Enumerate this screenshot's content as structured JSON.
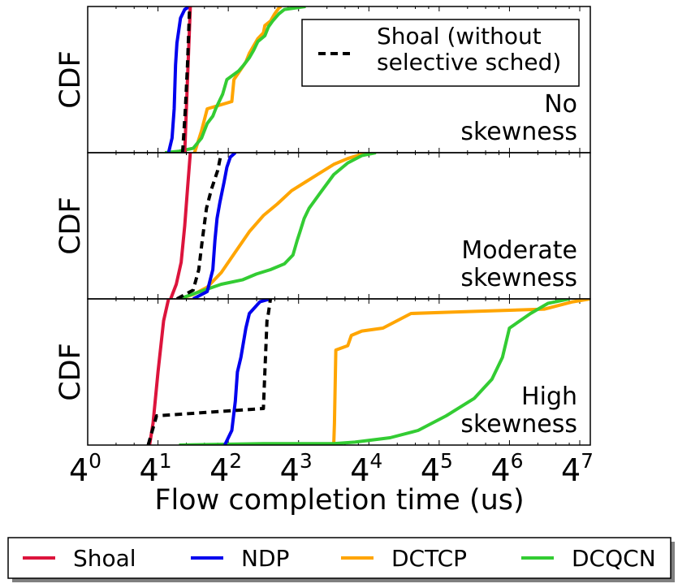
{
  "chart_data": {
    "type": "line",
    "xlabel": "Flow completion time (us)",
    "x_scale": "log4",
    "xlim": [
      0,
      7.15
    ],
    "ylim": [
      0,
      1
    ],
    "x_tick_bases": [
      "4",
      "4",
      "4",
      "4",
      "4",
      "4",
      "4",
      "4"
    ],
    "x_tick_exponents": [
      "0",
      "1",
      "2",
      "3",
      "4",
      "5",
      "6",
      "7"
    ],
    "x_tick_values": [
      0,
      1,
      2,
      3,
      4,
      5,
      6,
      7
    ],
    "colors": {
      "Shoal": "#dc143c",
      "NDP": "#0000ee",
      "DCTCP": "#ffa500",
      "DCQCN": "#33cc33",
      "Shoal (without selective sched)": "#000000"
    },
    "legend": {
      "placement": "bottom, outside",
      "entries": [
        "Shoal",
        "NDP",
        "DCTCP",
        "DCQCN"
      ]
    },
    "panels": [
      {
        "ylabel": "CDF",
        "label_lines": [
          "No",
          "skewness"
        ],
        "inset_legend": {
          "placement": "top-right",
          "label_lines": [
            "Shoal (without",
            "selective sched)"
          ]
        },
        "series": [
          {
            "name": "DCTCP",
            "points": [
              [
                1.52,
                0
              ],
              [
                1.62,
                0.15
              ],
              [
                1.7,
                0.3
              ],
              [
                2.05,
                0.35
              ],
              [
                2.08,
                0.5
              ],
              [
                2.25,
                0.62
              ],
              [
                2.3,
                0.68
              ],
              [
                2.42,
                0.78
              ],
              [
                2.5,
                0.82
              ],
              [
                2.52,
                0.87
              ],
              [
                2.6,
                0.9
              ],
              [
                2.66,
                0.95
              ],
              [
                2.72,
                0.99
              ],
              [
                2.75,
                1
              ]
            ]
          },
          {
            "name": "DCQCN",
            "points": [
              [
                1.1,
                0
              ],
              [
                1.3,
                0.01
              ],
              [
                1.5,
                0.03
              ],
              [
                1.62,
                0.1
              ],
              [
                1.7,
                0.2
              ],
              [
                1.78,
                0.25
              ],
              [
                1.82,
                0.3
              ],
              [
                1.92,
                0.4
              ],
              [
                1.98,
                0.5
              ],
              [
                2.15,
                0.56
              ],
              [
                2.22,
                0.6
              ],
              [
                2.3,
                0.65
              ],
              [
                2.36,
                0.7
              ],
              [
                2.42,
                0.76
              ],
              [
                2.52,
                0.8
              ],
              [
                2.57,
                0.86
              ],
              [
                2.63,
                0.9
              ],
              [
                2.72,
                0.95
              ],
              [
                2.8,
                0.98
              ],
              [
                3.1,
                1
              ]
            ]
          },
          {
            "name": "NDP",
            "points": [
              [
                1.15,
                0
              ],
              [
                1.2,
                0.1
              ],
              [
                1.23,
                0.3
              ],
              [
                1.25,
                0.6
              ],
              [
                1.27,
                0.75
              ],
              [
                1.3,
                0.85
              ],
              [
                1.32,
                0.92
              ],
              [
                1.38,
                0.98
              ],
              [
                1.45,
                1
              ]
            ]
          },
          {
            "name": "Shoal",
            "points": [
              [
                1.38,
                0
              ],
              [
                1.42,
                0.5
              ],
              [
                1.46,
                1
              ]
            ]
          },
          {
            "name": "Shoal (without selective sched)",
            "points": [
              [
                1.35,
                0
              ],
              [
                1.39,
                0.3
              ],
              [
                1.42,
                0.6
              ],
              [
                1.45,
                1
              ]
            ]
          }
        ]
      },
      {
        "ylabel": "CDF",
        "label_lines": [
          "Moderate",
          "skewness"
        ],
        "series": [
          {
            "name": "DCTCP",
            "points": [
              [
                1.3,
                0
              ],
              [
                1.5,
                0.03
              ],
              [
                1.7,
                0.08
              ],
              [
                1.9,
                0.18
              ],
              [
                2.1,
                0.32
              ],
              [
                2.3,
                0.46
              ],
              [
                2.5,
                0.57
              ],
              [
                2.7,
                0.65
              ],
              [
                2.9,
                0.74
              ],
              [
                3.1,
                0.8
              ],
              [
                3.3,
                0.86
              ],
              [
                3.5,
                0.92
              ],
              [
                3.7,
                0.96
              ],
              [
                3.9,
                0.99
              ],
              [
                4.0,
                1
              ]
            ]
          },
          {
            "name": "DCQCN",
            "points": [
              [
                1.3,
                0
              ],
              [
                1.6,
                0.05
              ],
              [
                1.9,
                0.1
              ],
              [
                2.2,
                0.13
              ],
              [
                2.4,
                0.17
              ],
              [
                2.6,
                0.2
              ],
              [
                2.8,
                0.24
              ],
              [
                2.92,
                0.3
              ],
              [
                2.98,
                0.4
              ],
              [
                3.02,
                0.46
              ],
              [
                3.08,
                0.55
              ],
              [
                3.15,
                0.62
              ],
              [
                3.3,
                0.72
              ],
              [
                3.5,
                0.85
              ],
              [
                3.7,
                0.93
              ],
              [
                3.9,
                0.98
              ],
              [
                4.1,
                1
              ]
            ]
          },
          {
            "name": "NDP",
            "points": [
              [
                1.5,
                0
              ],
              [
                1.7,
                0.05
              ],
              [
                1.78,
                0.2
              ],
              [
                1.81,
                0.4
              ],
              [
                1.84,
                0.55
              ],
              [
                1.88,
                0.66
              ],
              [
                1.94,
                0.8
              ],
              [
                1.98,
                0.9
              ],
              [
                2.03,
                0.97
              ],
              [
                2.1,
                1
              ]
            ]
          },
          {
            "name": "Shoal",
            "points": [
              [
                1.18,
                0
              ],
              [
                1.26,
                0.1
              ],
              [
                1.33,
                0.25
              ],
              [
                1.38,
                0.5
              ],
              [
                1.42,
                0.75
              ],
              [
                1.46,
                1
              ]
            ]
          },
          {
            "name": "Shoal (without selective sched)",
            "points": [
              [
                1.27,
                0
              ],
              [
                1.5,
                0.06
              ],
              [
                1.58,
                0.2
              ],
              [
                1.63,
                0.4
              ],
              [
                1.69,
                0.62
              ],
              [
                1.76,
                0.75
              ],
              [
                1.85,
                0.88
              ],
              [
                1.9,
                1
              ]
            ]
          }
        ]
      },
      {
        "ylabel": "CDF",
        "label_lines": [
          "High",
          "skewness"
        ],
        "series": [
          {
            "name": "DCTCP",
            "points": [
              [
                3.5,
                0
              ],
              [
                3.51,
                0.15
              ],
              [
                3.53,
                0.65
              ],
              [
                3.7,
                0.68
              ],
              [
                3.75,
                0.75
              ],
              [
                3.9,
                0.78
              ],
              [
                4.2,
                0.8
              ],
              [
                4.6,
                0.9
              ],
              [
                5.2,
                0.91
              ],
              [
                6.5,
                0.93
              ],
              [
                6.9,
                0.98
              ],
              [
                7.15,
                1
              ]
            ]
          },
          {
            "name": "DCQCN",
            "points": [
              [
                1.3,
                0
              ],
              [
                2.5,
                0.01
              ],
              [
                3.5,
                0.01
              ],
              [
                3.8,
                0.02
              ],
              [
                4.3,
                0.05
              ],
              [
                4.7,
                0.1
              ],
              [
                5.1,
                0.2
              ],
              [
                5.5,
                0.32
              ],
              [
                5.75,
                0.45
              ],
              [
                5.9,
                0.6
              ],
              [
                6.0,
                0.8
              ],
              [
                6.3,
                0.9
              ],
              [
                6.55,
                0.97
              ],
              [
                6.85,
                1
              ]
            ]
          },
          {
            "name": "NDP",
            "points": [
              [
                1.95,
                0
              ],
              [
                2.05,
                0.1
              ],
              [
                2.1,
                0.3
              ],
              [
                2.13,
                0.5
              ],
              [
                2.18,
                0.6
              ],
              [
                2.25,
                0.8
              ],
              [
                2.3,
                0.9
              ],
              [
                2.45,
                0.98
              ],
              [
                2.6,
                1
              ]
            ]
          },
          {
            "name": "Shoal",
            "points": [
              [
                0.88,
                0
              ],
              [
                0.93,
                0.15
              ],
              [
                1.0,
                0.5
              ],
              [
                1.08,
                0.85
              ],
              [
                1.15,
                1
              ]
            ]
          },
          {
            "name": "Shoal (without selective sched)",
            "points": [
              [
                0.86,
                0
              ],
              [
                0.98,
                0.2
              ],
              [
                2.5,
                0.25
              ],
              [
                2.52,
                0.5
              ],
              [
                2.55,
                0.85
              ],
              [
                2.57,
                0.9
              ],
              [
                2.6,
                1
              ]
            ]
          }
        ]
      }
    ]
  }
}
